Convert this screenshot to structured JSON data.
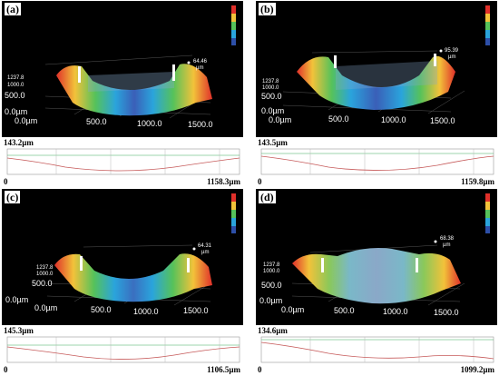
{
  "panels": [
    {
      "label": "(a)",
      "peak": "64.46",
      "peak_unit": "µm",
      "z_top": "1237.8",
      "z_mid": "1000.0",
      "z_low": "500.0",
      "origin_z": "0.0µm",
      "origin_x": "0.0µm",
      "x1": "500.0",
      "x2": "1000.0",
      "x3": "1500.0",
      "profile_depth": "143.2µm",
      "profile_start": "0",
      "profile_end": "1158.3µm"
    },
    {
      "label": "(b)",
      "peak": "95.39",
      "peak_unit": "µm",
      "z_top": "1237.8",
      "z_mid": "1000.0",
      "z_low": "500.0",
      "origin_z": "0.0µm",
      "origin_x": "0.0µm",
      "x1": "500.0",
      "x2": "1000.0",
      "x3": "1500.0",
      "profile_depth": "143.5µm",
      "profile_start": "0",
      "profile_end": "1159.8µm"
    },
    {
      "label": "(c)",
      "peak": "64.31",
      "peak_unit": "µm",
      "z_top": "1237.8",
      "z_mid": "1000.0",
      "z_low": "500.0",
      "origin_z": "0.0µm",
      "origin_x": "0.0µm",
      "x1": "500.0",
      "x2": "1000.0",
      "x3": "1500.0",
      "profile_depth": "145.3µm",
      "profile_start": "0",
      "profile_end": "1106.5µm"
    },
    {
      "label": "(d)",
      "peak": "68.38",
      "peak_unit": "µm",
      "z_top": "1237.8",
      "z_mid": "1000.0",
      "z_low": "500.0",
      "origin_z": "0.0µm",
      "origin_x": "0.0µm",
      "x1": "500.0",
      "x2": "1000.0",
      "x3": "1500.0",
      "profile_depth": "134.6µm",
      "profile_start": "0",
      "profile_end": "1099.2µm"
    }
  ],
  "colors": {
    "high": "#e0302a",
    "mid_high": "#f2c23a",
    "mid": "#56c25a",
    "mid_low": "#2aa4dc",
    "low": "#2d4fa8",
    "profile_red": "#c65a5a",
    "profile_green": "#3caa5a"
  }
}
